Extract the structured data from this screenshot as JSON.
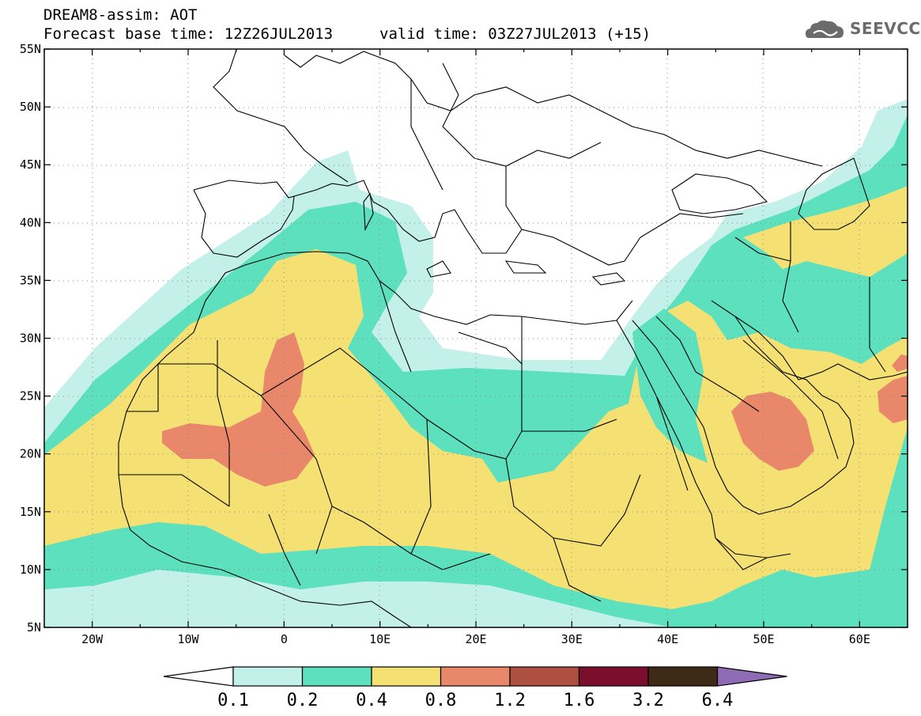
{
  "header": {
    "line1": "DREAM8-assim: AOT",
    "line2": "Forecast base time: 12Z26JUL2013",
    "valid": "valid time: 03Z27JUL2013 (+15)"
  },
  "logo": {
    "text": "SEEVCCC",
    "icon": "cloud-icon"
  },
  "map": {
    "variable": "AOT",
    "projection": "lat-lon",
    "lon_range": [
      -25,
      65
    ],
    "lat_range": [
      5,
      55
    ],
    "lat_ticks": [
      "5N",
      "10N",
      "15N",
      "20N",
      "25N",
      "30N",
      "35N",
      "40N",
      "45N",
      "50N",
      "55N"
    ],
    "lon_ticks": [
      "20W",
      "10W",
      "0",
      "10E",
      "20E",
      "30E",
      "40E",
      "50E",
      "60E"
    ],
    "grid": true
  },
  "colorbar": {
    "levels": [
      "0.1",
      "0.2",
      "0.4",
      "0.8",
      "1.2",
      "1.6",
      "3.2",
      "6.4"
    ],
    "colors": [
      "#c4f0ea",
      "#5ce0be",
      "#f5e173",
      "#e8876a",
      "#ad5042",
      "#7a0e2c",
      "#3e2a16"
    ],
    "under_color": "#ffffff",
    "over_color": "#8e6bb4"
  }
}
